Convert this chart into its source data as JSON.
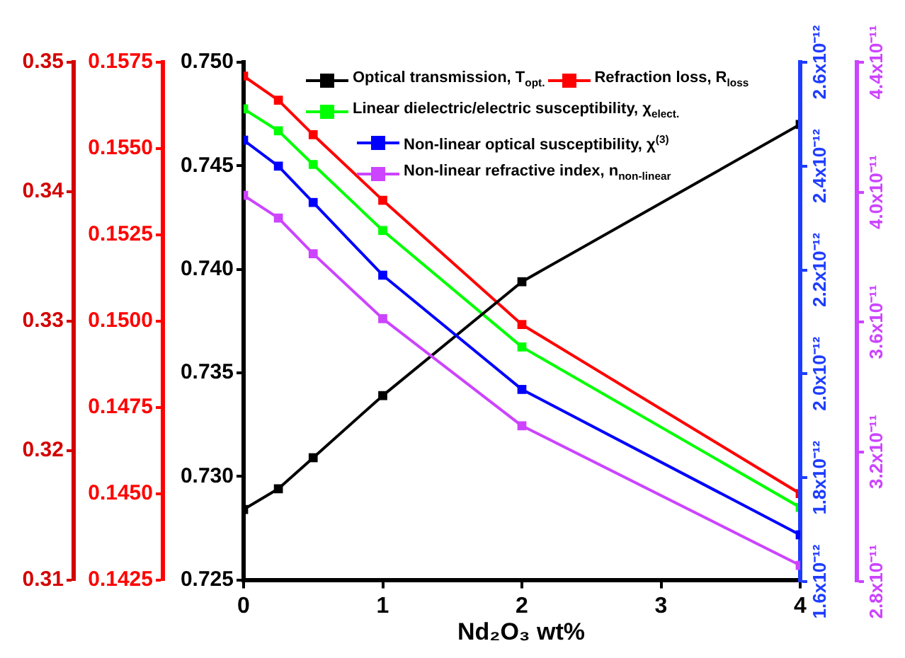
{
  "chart_data": [
    {
      "type": "line",
      "xlabel": "Nd₂O₃ wt%",
      "x": [
        0,
        0.25,
        0.5,
        1,
        2,
        4
      ],
      "xlim": [
        0,
        4
      ],
      "xticks": [
        0,
        1,
        2,
        3,
        4
      ],
      "ylim": [
        0.725,
        0.75
      ],
      "yticks": [
        {
          "value": 0.725,
          "label": "0.725"
        },
        {
          "value": 0.73,
          "label": "0.730"
        },
        {
          "value": 0.735,
          "label": "0.735"
        },
        {
          "value": 0.74,
          "label": "0.740"
        },
        {
          "value": 0.745,
          "label": "0.745"
        },
        {
          "value": 0.75,
          "label": "0.750"
        }
      ],
      "y2lim": [
        0.1425,
        0.1575
      ],
      "y2ticks": [
        {
          "value": 0.1425,
          "label": "0.1425"
        },
        {
          "value": 0.145,
          "label": "0.1450"
        },
        {
          "value": 0.1475,
          "label": "0.1475"
        },
        {
          "value": 0.15,
          "label": "0.1500"
        },
        {
          "value": 0.1525,
          "label": "0.1525"
        },
        {
          "value": 0.155,
          "label": "0.1550"
        },
        {
          "value": 0.1575,
          "label": "0.1575"
        }
      ],
      "y3lim": [
        0.31,
        0.35
      ],
      "y3ticks": [
        0.31,
        0.32,
        0.33,
        0.34,
        0.35
      ],
      "series": [
        {
          "name": "Optical transmission, T$_{opt.}$",
          "color": "#000000",
          "values": [
            0.7284,
            0.7294,
            0.7309,
            0.7339,
            0.7394,
            0.747
          ]
        },
        {
          "name": "Refraction loss, R$_{loss}$",
          "color": "#ff0000",
          "axis": "y2",
          "values": [
            0.1571,
            0.1564,
            0.1554,
            0.1535,
            0.1499,
            0.145
          ]
        },
        {
          "name": "Linear dielectric/electric susceptibility, χ$_{elect.}$",
          "color": "#00ff00",
          "axis": "y3",
          "values": [
            0.3464,
            0.3447,
            0.3421,
            0.337,
            0.328,
            0.3156
          ]
        }
      ],
      "grid": false,
      "legend": "top",
      "marker": "square",
      "line_style": "solid"
    },
    {
      "type": "line",
      "x": [
        0,
        0.25,
        0.5,
        1,
        2,
        4
      ],
      "xlim": [
        0,
        4
      ],
      "ylim": [
        1.6e-12,
        2.6e-12
      ],
      "yticks": [
        {
          "value": 1.6e-12,
          "label": "1.6x10⁻¹²"
        },
        {
          "value": 1.8e-12,
          "label": "1.8x10⁻¹²"
        },
        {
          "value": 2e-12,
          "label": "2.0x10⁻¹²"
        },
        {
          "value": 2.2e-12,
          "label": "2.2x10⁻¹²"
        },
        {
          "value": 2.4e-12,
          "label": "2.4x10⁻¹²"
        },
        {
          "value": 2.6e-12,
          "label": "2.6x10⁻¹²"
        }
      ],
      "y2lim": [
        2.8e-11,
        4.4e-11
      ],
      "y2ticks": [
        {
          "value": 2.8e-11,
          "label": "2.8x10⁻¹¹"
        },
        {
          "value": 3.2e-11,
          "label": "3.2x10⁻¹¹"
        },
        {
          "value": 3.6e-11,
          "label": "3.6x10⁻¹¹"
        },
        {
          "value": 4e-11,
          "label": "4.0x10⁻¹¹"
        },
        {
          "value": 4.4e-11,
          "label": "4.4x10⁻¹¹"
        }
      ],
      "series": [
        {
          "name": "Non-linear optical susceptibility, χ$^{(3)}$",
          "color": "#0000ff",
          "values": [
            2.45e-12,
            2.4e-12,
            2.33e-12,
            2.19e-12,
            1.97e-12,
            1.69e-12
          ]
        },
        {
          "name": "Non-linear refractive index, n$_{non-linear}$",
          "color": "#cc44ff",
          "axis": "y2",
          "values": [
            3.99e-11,
            3.92e-11,
            3.81e-11,
            3.61e-11,
            3.28e-11,
            2.85e-11
          ]
        }
      ],
      "grid": false,
      "legend": "top",
      "marker": "square",
      "line_style": "solid",
      "tick_labels": "y"
    }
  ]
}
